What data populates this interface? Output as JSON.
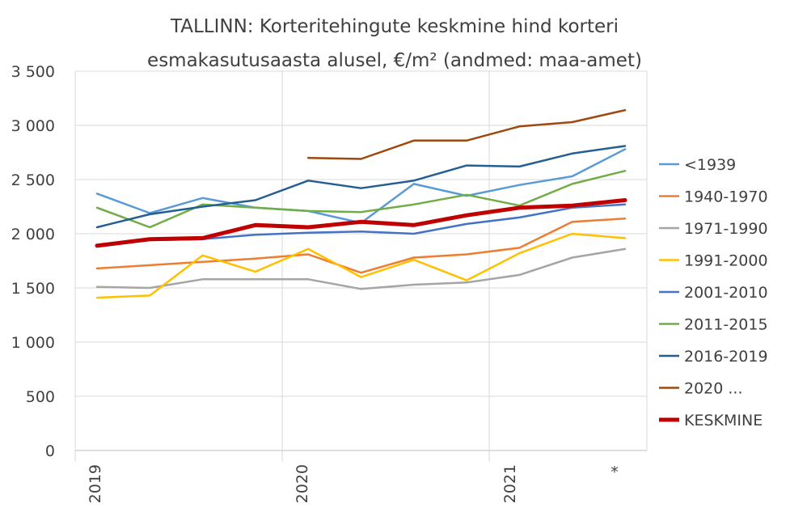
{
  "chart_data": {
    "type": "line",
    "title_line1": "TALLINN: Korteritehingute keskmine hind korteri",
    "title_line2": "esmakasutusaasta alusel, €/m² (andmed: maa-amet)",
    "xlabel": "",
    "ylabel": "",
    "ylim": [
      0,
      3500
    ],
    "y_ticks": [
      0,
      500,
      1000,
      1500,
      2000,
      2500,
      3000,
      3500
    ],
    "y_tick_labels": [
      "0",
      "500",
      "1 000",
      "1 500",
      "2 000",
      "2 500",
      "3 000",
      "3 500"
    ],
    "x_points": 11,
    "x_labels": [
      {
        "index": 0,
        "label": "2019"
      },
      {
        "index": 4,
        "label": "2020"
      },
      {
        "index": 8,
        "label": "2021"
      },
      {
        "index": 10,
        "label": "*"
      }
    ],
    "grid": true,
    "legend_position": "right",
    "series": [
      {
        "name": "<1939",
        "color": "#5b9bd5",
        "width": 2.5,
        "values": [
          2370,
          2190,
          2330,
          2240,
          2210,
          2100,
          2460,
          2350,
          2450,
          2530,
          2780
        ]
      },
      {
        "name": "1940-1970",
        "color": "#ed7d31",
        "width": 2.5,
        "values": [
          1680,
          1710,
          1740,
          1770,
          1810,
          1640,
          1780,
          1810,
          1870,
          2110,
          2140
        ]
      },
      {
        "name": "1971-1990",
        "color": "#a5a5a5",
        "width": 2.5,
        "values": [
          1510,
          1500,
          1580,
          1580,
          1580,
          1490,
          1530,
          1550,
          1620,
          1780,
          1860
        ]
      },
      {
        "name": "1991-2000",
        "color": "#ffc000",
        "width": 2.5,
        "values": [
          1410,
          1430,
          1800,
          1650,
          1860,
          1600,
          1760,
          1570,
          1820,
          2000,
          1960
        ]
      },
      {
        "name": "2001-2010",
        "color": "#4472c4",
        "width": 2.5,
        "values": [
          1880,
          1940,
          1950,
          1990,
          2010,
          2020,
          2000,
          2090,
          2150,
          2240,
          2270
        ]
      },
      {
        "name": "2011-2015",
        "color": "#70ad47",
        "width": 2.5,
        "values": [
          2240,
          2060,
          2270,
          2240,
          2210,
          2200,
          2270,
          2360,
          2260,
          2460,
          2580
        ]
      },
      {
        "name": "2016-2019",
        "color": "#255e91",
        "width": 2.5,
        "values": [
          2060,
          2180,
          2250,
          2310,
          2490,
          2420,
          2490,
          2630,
          2620,
          2740,
          2810
        ]
      },
      {
        "name": "2020 ...",
        "color": "#9e480e",
        "width": 2.5,
        "values": [
          null,
          null,
          null,
          null,
          2700,
          2690,
          2860,
          2860,
          2990,
          3030,
          3140
        ]
      },
      {
        "name": "KESKMINE",
        "color": "#c00000",
        "width": 5,
        "values": [
          1890,
          1950,
          1960,
          2080,
          2060,
          2110,
          2080,
          2170,
          2240,
          2260,
          2310
        ]
      }
    ]
  }
}
